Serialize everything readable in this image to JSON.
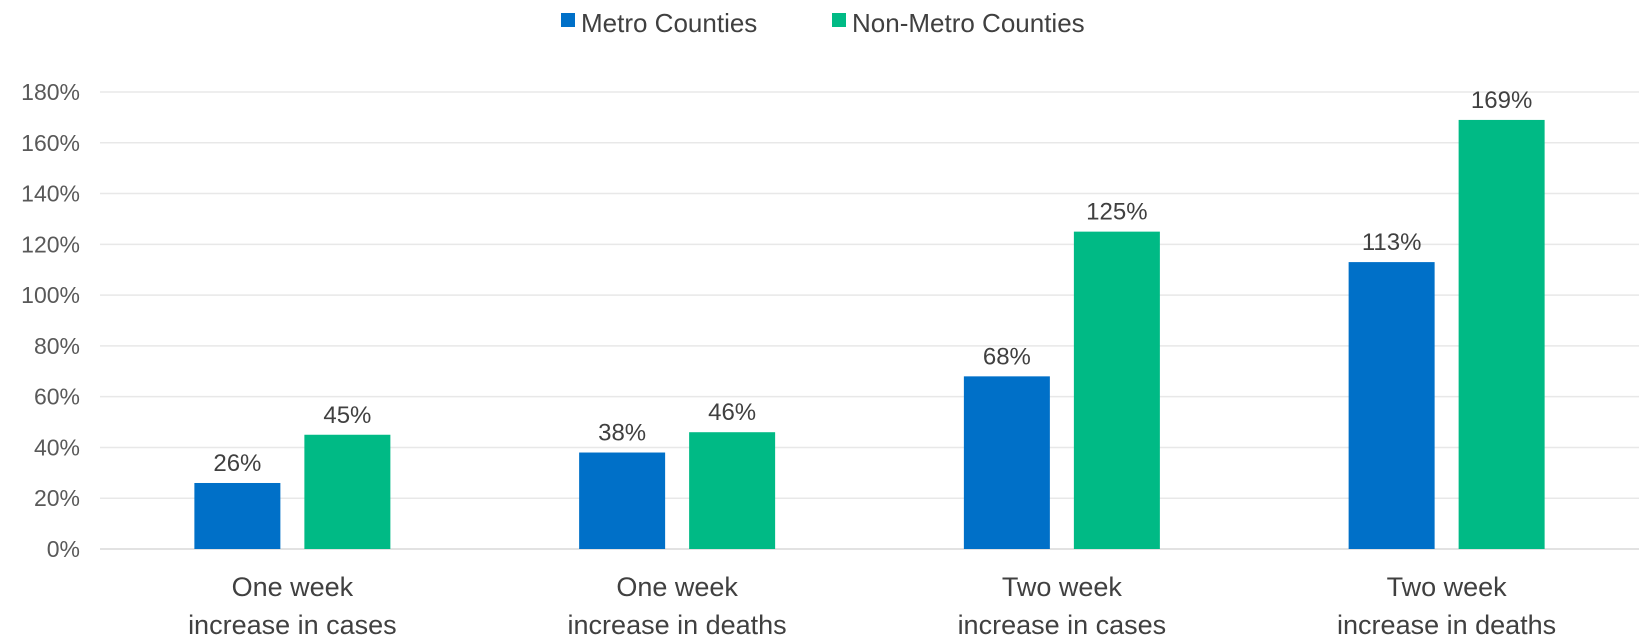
{
  "chart_data": {
    "type": "bar",
    "title": "",
    "xlabel": "",
    "ylabel": "",
    "ylim": [
      0,
      180
    ],
    "y_ticks": [
      "0%",
      "20%",
      "40%",
      "60%",
      "80%",
      "100%",
      "120%",
      "140%",
      "160%",
      "180%"
    ],
    "grid": true,
    "legend_position": "top",
    "categories": [
      [
        "One week",
        "increase in cases"
      ],
      [
        "One week",
        "increase in deaths"
      ],
      [
        "Two week",
        "increase in cases"
      ],
      [
        "Two week",
        "increase in deaths"
      ]
    ],
    "series": [
      {
        "name": "Metro Counties",
        "color": "#0070C8",
        "values": [
          26,
          38,
          68,
          113
        ],
        "labels": [
          "26%",
          "38%",
          "68%",
          "113%"
        ]
      },
      {
        "name": "Non-Metro Counties",
        "color": "#00BA85",
        "values": [
          45,
          46,
          125,
          169
        ],
        "labels": [
          "45%",
          "46%",
          "125%",
          "169%"
        ]
      }
    ]
  }
}
